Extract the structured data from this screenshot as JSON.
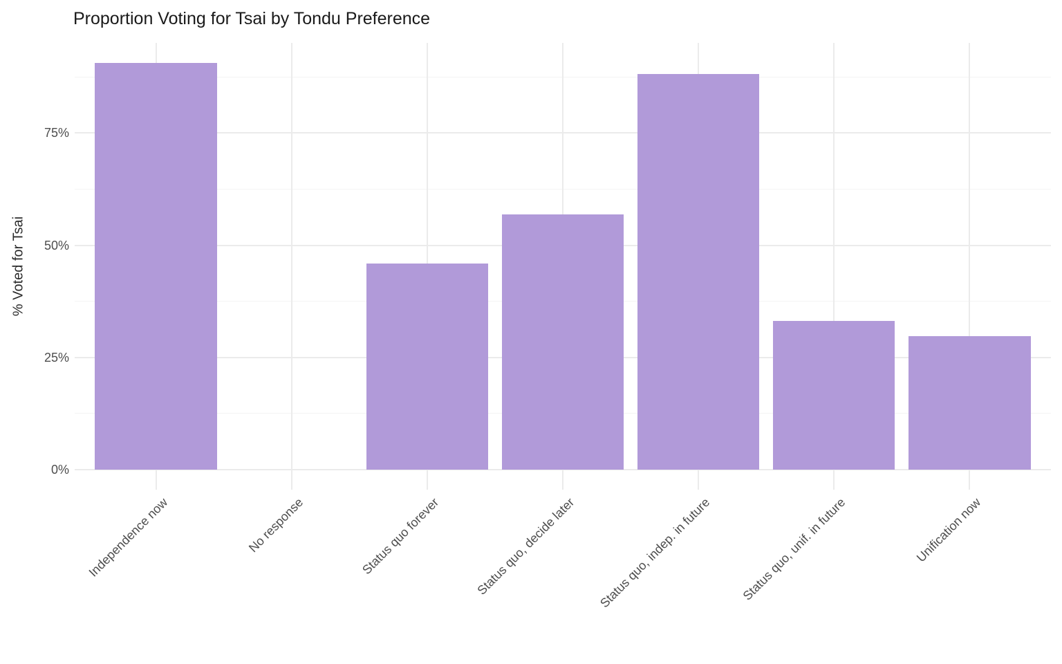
{
  "chart_data": {
    "type": "bar",
    "title": "Proportion Voting for Tsai by Tondu Preference",
    "xlabel": "",
    "ylabel": "% Voted for Tsai",
    "categories": [
      "Independence now",
      "No response",
      "Status quo forever",
      "Status quo, decide later",
      "Status quo, indep. in future",
      "Status quo, unif. in future",
      "Unification now"
    ],
    "values": [
      90.6,
      0,
      45.9,
      56.9,
      88.2,
      33.1,
      29.8
    ],
    "value_unit": "percent",
    "y_axis": {
      "ticks": [
        {
          "value": 0,
          "label": "0%"
        },
        {
          "value": 25,
          "label": "25%"
        },
        {
          "value": 50,
          "label": "50%"
        },
        {
          "value": 75,
          "label": "75%"
        }
      ],
      "minor_tick_values": [
        12.5,
        37.5,
        62.5,
        87.5
      ],
      "range": [
        -4.5,
        95.1
      ]
    },
    "x_axis": {
      "label_rotation_deg": 45
    },
    "legend": "none",
    "grid": "on",
    "bar_width_ratio": 0.9,
    "colors": {
      "bar": "#B19AD9",
      "grid_major": "#EBEBEB",
      "grid_minor": "#F4F4F4",
      "title_text": "#1A1A1A",
      "axis_text": "#4D4D4D",
      "axis_title_text": "#2B2B2B",
      "background": "#FFFFFF"
    }
  }
}
